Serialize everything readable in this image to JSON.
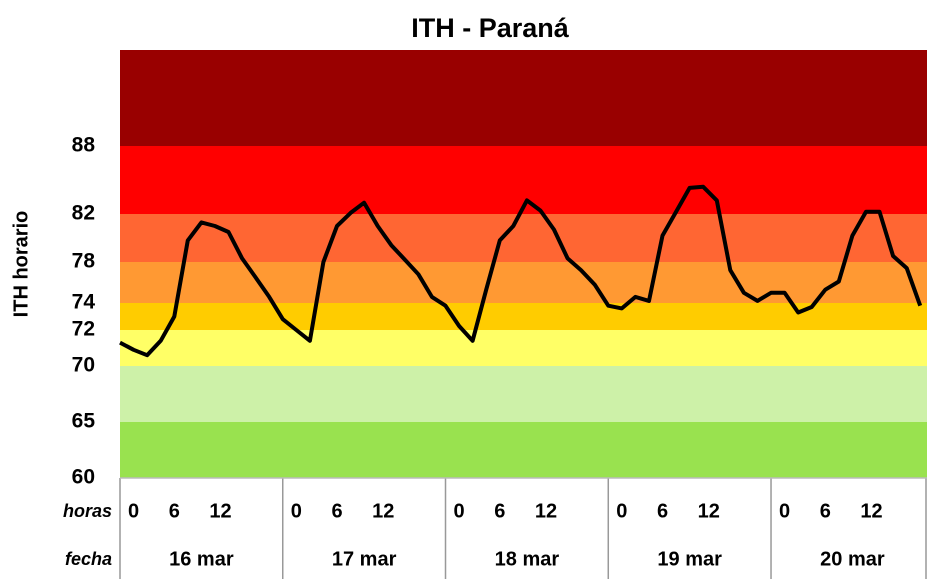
{
  "chart_data": {
    "type": "line",
    "title": "ITH - Paraná",
    "y_label": "ITH horario",
    "x_row_label": "horas",
    "date_row_label": "fecha",
    "dates": [
      "16 mar",
      "17 mar",
      "18 mar",
      "19 mar",
      "20 mar"
    ],
    "x": [
      0,
      2,
      4,
      6,
      8,
      10,
      12,
      14,
      16,
      18,
      20,
      22,
      24,
      26,
      28,
      30,
      32,
      34,
      36,
      38,
      40,
      42,
      44,
      46,
      48,
      50,
      52,
      54,
      56,
      58,
      60,
      62,
      64,
      66,
      68,
      70,
      72,
      74,
      76,
      78,
      80,
      82,
      84,
      86,
      88,
      90,
      92,
      94,
      96,
      98,
      100,
      102,
      104,
      106,
      108,
      110,
      112,
      114,
      116,
      118
    ],
    "series": [
      {
        "color": "#000000",
        "values": [
          71.3,
          70.9,
          70.6,
          71.4,
          73,
          79.8,
          81.3,
          81,
          80.5,
          78.3,
          76.5,
          74.6,
          72.8,
          72,
          71.4,
          78,
          81,
          82.1,
          83,
          81,
          79.4,
          78.2,
          76.8,
          74.6,
          73.8,
          72.3,
          71.4,
          75.3,
          79.8,
          81,
          83.2,
          82.3,
          80.7,
          78.3,
          77.2,
          75.8,
          73.8,
          73.6,
          74.6,
          74.2,
          80.2,
          82.2,
          84.3,
          84.4,
          83.2,
          77.2,
          75,
          74.2,
          75,
          75,
          73.3,
          73.7,
          75.3,
          76.1,
          80.2,
          82.2,
          82.2,
          78.5,
          77.4,
          73.8
        ]
      }
    ],
    "xlim": [
      0,
      119
    ],
    "xticks": [
      0,
      6,
      12,
      {
        "value": 24,
        "label": "0"
      },
      {
        "value": 30,
        "label": "6"
      },
      {
        "value": 36,
        "label": "12"
      },
      {
        "value": 48,
        "label": "0"
      },
      {
        "value": 54,
        "label": "6"
      },
      {
        "value": 60,
        "label": "12"
      },
      {
        "value": 72,
        "label": "0"
      },
      {
        "value": 78,
        "label": "6"
      },
      {
        "value": 84,
        "label": "12"
      },
      {
        "value": 96,
        "label": "0"
      },
      {
        "value": 102,
        "label": "6"
      },
      {
        "value": 108,
        "label": "12"
      }
    ],
    "ylim": [
      60,
      96.5
    ],
    "yticks": [
      60,
      65,
      70,
      72,
      74,
      78,
      82,
      88
    ],
    "bands": [
      {
        "from": 60,
        "to": 65,
        "color": "#99e24f"
      },
      {
        "from": 65,
        "to": 70,
        "color": "#cdf1a8"
      },
      {
        "from": 70,
        "to": 72,
        "color": "#ffff66"
      },
      {
        "from": 72,
        "to": 74,
        "color": "#ffcc00"
      },
      {
        "from": 74,
        "to": 78,
        "color": "#ff9933"
      },
      {
        "from": 78,
        "to": 82,
        "color": "#ff6633"
      },
      {
        "from": 82,
        "to": 88,
        "color": "#ff0000"
      },
      {
        "from": 88,
        "to": 96.5,
        "color": "#990000"
      }
    ]
  }
}
